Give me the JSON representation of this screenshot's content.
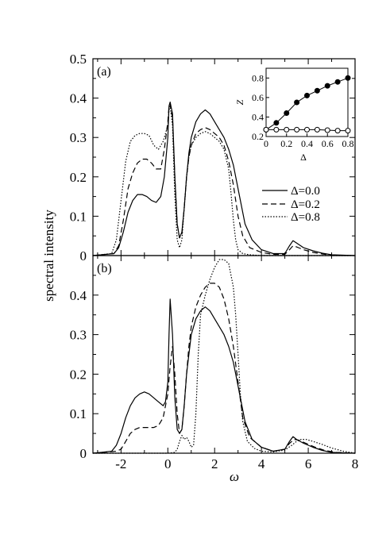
{
  "figure": {
    "ylabel": "spectral intensity",
    "xlabel": "ω"
  },
  "chart_data": [
    {
      "type": "line",
      "panel": "(a)",
      "xlim": [
        -3.2,
        8
      ],
      "ylim": [
        0,
        0.5
      ],
      "x_ticks": [
        "-2",
        "0",
        "2",
        "4",
        "6",
        "8"
      ],
      "y_ticks": [
        "0",
        "0.1",
        "0.2",
        "0.3",
        "0.4",
        "0.5"
      ],
      "legend": {
        "placement": "right",
        "entries": [
          "Δ=0.0",
          "Δ=0.2",
          "Δ=0.8"
        ]
      },
      "series": [
        {
          "name": "Δ=0.0",
          "style": "solid",
          "x": [
            -3.2,
            -2.3,
            -2.1,
            -1.9,
            -1.7,
            -1.5,
            -1.3,
            -1.1,
            -0.9,
            -0.7,
            -0.5,
            -0.3,
            -0.15,
            0,
            0.05,
            0.1,
            0.2,
            0.3,
            0.4,
            0.5,
            0.6,
            0.7,
            0.8,
            0.9,
            1.0,
            1.2,
            1.4,
            1.6,
            1.8,
            2.0,
            2.2,
            2.4,
            2.6,
            2.8,
            3.0,
            3.3,
            3.6,
            4.0,
            4.5,
            5.0,
            5.2,
            5.35,
            5.5,
            5.8,
            6.2,
            6.6,
            7.0,
            8.0
          ],
          "y": [
            0,
            0.005,
            0.02,
            0.06,
            0.11,
            0.14,
            0.155,
            0.155,
            0.15,
            0.14,
            0.135,
            0.15,
            0.2,
            0.3,
            0.38,
            0.39,
            0.36,
            0.2,
            0.08,
            0.045,
            0.06,
            0.12,
            0.2,
            0.26,
            0.3,
            0.34,
            0.36,
            0.37,
            0.36,
            0.34,
            0.32,
            0.3,
            0.27,
            0.23,
            0.17,
            0.08,
            0.04,
            0.015,
            0.005,
            0.005,
            0.025,
            0.038,
            0.032,
            0.02,
            0.012,
            0.006,
            0.002,
            0
          ]
        },
        {
          "name": "Δ=0.2",
          "style": "dashed",
          "x": [
            -3.2,
            -2.3,
            -2.1,
            -1.9,
            -1.7,
            -1.5,
            -1.3,
            -1.1,
            -0.9,
            -0.7,
            -0.5,
            -0.3,
            -0.15,
            0,
            0.05,
            0.1,
            0.2,
            0.3,
            0.4,
            0.5,
            0.6,
            0.7,
            0.8,
            0.9,
            1.0,
            1.2,
            1.4,
            1.6,
            1.8,
            2.0,
            2.2,
            2.4,
            2.6,
            2.8,
            3.0,
            3.2,
            3.5,
            4.0,
            4.5,
            5.0,
            5.2,
            5.35,
            5.5,
            5.8,
            6.2,
            6.6,
            7.0,
            8.0
          ],
          "y": [
            0,
            0.005,
            0.025,
            0.09,
            0.17,
            0.21,
            0.235,
            0.245,
            0.245,
            0.235,
            0.22,
            0.22,
            0.27,
            0.34,
            0.38,
            0.385,
            0.35,
            0.2,
            0.08,
            0.045,
            0.055,
            0.12,
            0.2,
            0.25,
            0.28,
            0.31,
            0.32,
            0.325,
            0.32,
            0.31,
            0.3,
            0.28,
            0.24,
            0.18,
            0.1,
            0.05,
            0.02,
            0.008,
            0.003,
            0.003,
            0.015,
            0.025,
            0.022,
            0.015,
            0.008,
            0.004,
            0.001,
            0
          ]
        },
        {
          "name": "Δ=0.8",
          "style": "dotted",
          "x": [
            -3.2,
            -2.4,
            -2.2,
            -2.0,
            -1.8,
            -1.6,
            -1.4,
            -1.2,
            -1.0,
            -0.8,
            -0.6,
            -0.4,
            -0.2,
            0,
            0.05,
            0.1,
            0.2,
            0.3,
            0.4,
            0.5,
            0.6,
            0.7,
            0.8,
            0.9,
            1.0,
            1.2,
            1.4,
            1.6,
            1.8,
            2.0,
            2.2,
            2.4,
            2.6,
            2.7,
            2.8,
            2.9,
            3.0,
            3.2,
            3.5,
            4.0,
            5.0,
            5.5,
            6.0,
            8.0
          ],
          "y": [
            0,
            0.005,
            0.04,
            0.14,
            0.24,
            0.29,
            0.305,
            0.31,
            0.31,
            0.305,
            0.28,
            0.27,
            0.29,
            0.33,
            0.37,
            0.38,
            0.33,
            0.15,
            0.04,
            0.02,
            0.04,
            0.12,
            0.2,
            0.25,
            0.28,
            0.3,
            0.31,
            0.315,
            0.31,
            0.3,
            0.29,
            0.27,
            0.22,
            0.16,
            0.09,
            0.04,
            0.015,
            0.005,
            0.002,
            0,
            0,
            0,
            0,
            0
          ]
        }
      ],
      "inset": {
        "xlabel": "Δ",
        "ylabel": "Z",
        "xlim": [
          0,
          0.8
        ],
        "ylim": [
          0.2,
          0.9
        ],
        "x_ticks": [
          "0",
          "0.2",
          "0.4",
          "0.6",
          "0.8"
        ],
        "y_ticks": [
          "0.2",
          "0.4",
          "0.6",
          "0.8"
        ],
        "series": [
          {
            "name": "filled",
            "marker": "filled-circle",
            "x": [
              0,
              0.1,
              0.2,
              0.3,
              0.4,
              0.5,
              0.6,
              0.7,
              0.8
            ],
            "y": [
              0.27,
              0.34,
              0.44,
              0.55,
              0.62,
              0.67,
              0.72,
              0.76,
              0.8
            ]
          },
          {
            "name": "open",
            "marker": "open-circle",
            "x": [
              0,
              0.1,
              0.2,
              0.3,
              0.4,
              0.5,
              0.6,
              0.7,
              0.8
            ],
            "y": [
              0.27,
              0.27,
              0.27,
              0.27,
              0.27,
              0.27,
              0.265,
              0.26,
              0.26
            ]
          }
        ]
      }
    },
    {
      "type": "line",
      "panel": "(b)",
      "xlim": [
        -3.2,
        8
      ],
      "ylim": [
        0,
        0.5
      ],
      "x_ticks": [
        "-2",
        "0",
        "2",
        "4",
        "6",
        "8"
      ],
      "y_ticks": [
        "0",
        "0.1",
        "0.2",
        "0.3",
        "0.4"
      ],
      "series": [
        {
          "name": "Δ=0.0",
          "style": "solid",
          "x": [
            -3.2,
            -2.4,
            -2.2,
            -2.0,
            -1.8,
            -1.6,
            -1.4,
            -1.2,
            -1.0,
            -0.8,
            -0.6,
            -0.4,
            -0.2,
            -0.1,
            0,
            0.05,
            0.1,
            0.2,
            0.3,
            0.4,
            0.5,
            0.6,
            0.7,
            0.8,
            0.9,
            1.0,
            1.2,
            1.4,
            1.6,
            1.8,
            2.0,
            2.2,
            2.4,
            2.6,
            2.8,
            3.0,
            3.3,
            3.6,
            4.0,
            4.5,
            5.0,
            5.2,
            5.35,
            5.5,
            5.8,
            6.2,
            6.6,
            7.0,
            8.0
          ],
          "y": [
            0,
            0.005,
            0.02,
            0.05,
            0.09,
            0.12,
            0.14,
            0.15,
            0.155,
            0.15,
            0.14,
            0.13,
            0.12,
            0.13,
            0.18,
            0.3,
            0.39,
            0.3,
            0.14,
            0.06,
            0.05,
            0.06,
            0.12,
            0.2,
            0.25,
            0.3,
            0.34,
            0.36,
            0.37,
            0.36,
            0.34,
            0.32,
            0.3,
            0.27,
            0.23,
            0.17,
            0.08,
            0.035,
            0.015,
            0.005,
            0.01,
            0.03,
            0.042,
            0.035,
            0.025,
            0.015,
            0.007,
            0.002,
            0
          ]
        },
        {
          "name": "Δ=0.2",
          "style": "dashed",
          "x": [
            -3.2,
            -2.2,
            -2.0,
            -1.8,
            -1.6,
            -1.4,
            -1.2,
            -1.0,
            -0.8,
            -0.6,
            -0.4,
            -0.2,
            0,
            0.1,
            0.2,
            0.3,
            0.4,
            0.5,
            0.6,
            0.7,
            0.8,
            0.9,
            1.0,
            1.2,
            1.4,
            1.6,
            1.8,
            2.0,
            2.2,
            2.4,
            2.6,
            2.8,
            3.0,
            3.2,
            3.5,
            4.0,
            4.5,
            5.0,
            5.2,
            5.4,
            5.6,
            5.9,
            6.3,
            6.7,
            7.2,
            8.0
          ],
          "y": [
            0,
            0.005,
            0.01,
            0.03,
            0.05,
            0.06,
            0.065,
            0.065,
            0.065,
            0.065,
            0.07,
            0.09,
            0.15,
            0.22,
            0.27,
            0.2,
            0.1,
            0.05,
            0.06,
            0.12,
            0.2,
            0.27,
            0.32,
            0.37,
            0.4,
            0.42,
            0.43,
            0.43,
            0.42,
            0.39,
            0.34,
            0.27,
            0.18,
            0.09,
            0.04,
            0.015,
            0.005,
            0.01,
            0.025,
            0.035,
            0.033,
            0.025,
            0.015,
            0.007,
            0.002,
            0
          ]
        },
        {
          "name": "Δ=0.8",
          "style": "dotted",
          "x": [
            -3.2,
            -1.0,
            0,
            0.3,
            0.4,
            0.5,
            0.6,
            0.7,
            0.8,
            0.9,
            1.0,
            1.1,
            1.2,
            1.3,
            1.4,
            1.6,
            1.8,
            2.0,
            2.2,
            2.4,
            2.6,
            2.8,
            2.9,
            3.0,
            3.1,
            3.2,
            3.4,
            3.7,
            4.0,
            4.5,
            5.0,
            5.3,
            5.5,
            5.7,
            5.9,
            6.2,
            6.6,
            7.0,
            7.5,
            8.0
          ],
          "y": [
            0,
            0,
            0,
            0.002,
            0.01,
            0.03,
            0.045,
            0.035,
            0.04,
            0.03,
            0.015,
            0.02,
            0.1,
            0.25,
            0.35,
            0.4,
            0.44,
            0.47,
            0.49,
            0.49,
            0.48,
            0.42,
            0.35,
            0.25,
            0.15,
            0.08,
            0.03,
            0.012,
            0.005,
            0.003,
            0.008,
            0.02,
            0.03,
            0.035,
            0.035,
            0.03,
            0.022,
            0.013,
            0.005,
            0
          ]
        }
      ]
    }
  ]
}
